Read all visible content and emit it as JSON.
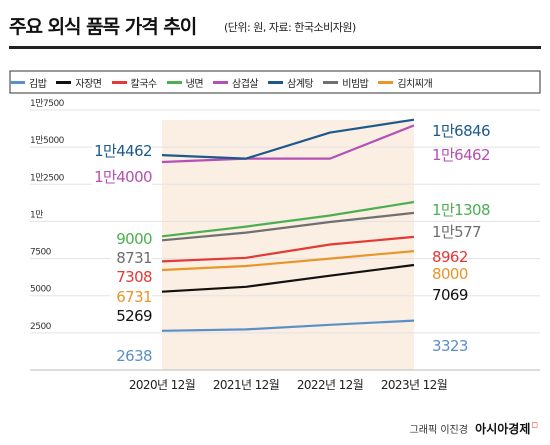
{
  "header": {
    "title": "주요 외식 품목 가격 추이",
    "subtitle": "(단위: 원, 자료: 한국소비자원)"
  },
  "credit": {
    "text": "그래픽 이진경",
    "brand": "아시아경제"
  },
  "colors": {
    "title_bar": "#222222",
    "legend_border": "#333333",
    "shade": "#fbeee3",
    "grid": "#e3e3e3"
  },
  "chart_data": {
    "type": "line",
    "categories": [
      "2020년 12월",
      "2021년 12월",
      "2022년 12월",
      "2023년 12월"
    ],
    "ylim": [
      0,
      17500
    ],
    "yticks": [
      {
        "value": 2500,
        "label": "2500"
      },
      {
        "value": 5000,
        "label": "5000"
      },
      {
        "value": 7500,
        "label": "7500"
      },
      {
        "value": 10000,
        "label": "1만"
      },
      {
        "value": 12500,
        "label": "1만2500"
      },
      {
        "value": 15000,
        "label": "1만5000"
      },
      {
        "value": 17500,
        "label": "1만7500"
      }
    ],
    "grid": true,
    "legend_position": "top",
    "series": [
      {
        "name": "김밥",
        "color": "#5b8fc9",
        "values": [
          2638,
          2730,
          3040,
          3323
        ],
        "start_label": "2638",
        "end_label": "3323"
      },
      {
        "name": "자장면",
        "color": "#111111",
        "values": [
          5269,
          5600,
          6350,
          7069
        ],
        "start_label": "5269",
        "end_label": "7069"
      },
      {
        "name": "칼국수",
        "color": "#e53935",
        "values": [
          7308,
          7550,
          8450,
          8962
        ],
        "start_label": "7308",
        "end_label": "8962"
      },
      {
        "name": "냉면",
        "color": "#4caf50",
        "values": [
          9000,
          9650,
          10400,
          11308
        ],
        "start_label": "9000",
        "end_label": "1만1308"
      },
      {
        "name": "삼겹살",
        "color": "#b64fb6",
        "values": [
          14000,
          14230,
          14230,
          16462
        ],
        "start_label": "1만4000",
        "end_label": "1만6462"
      },
      {
        "name": "삼계탕",
        "color": "#1c5a8c",
        "values": [
          14462,
          14230,
          15980,
          16846
        ],
        "start_label": "1만4462",
        "end_label": "1만6846"
      },
      {
        "name": "비빔밥",
        "color": "#707070",
        "values": [
          8731,
          9250,
          9960,
          10577
        ],
        "start_label": "8731",
        "end_label": "1만577"
      },
      {
        "name": "김치찌개",
        "color": "#e8962a",
        "values": [
          6731,
          7000,
          7500,
          8000
        ],
        "start_label": "6731",
        "end_label": "8000"
      }
    ]
  }
}
